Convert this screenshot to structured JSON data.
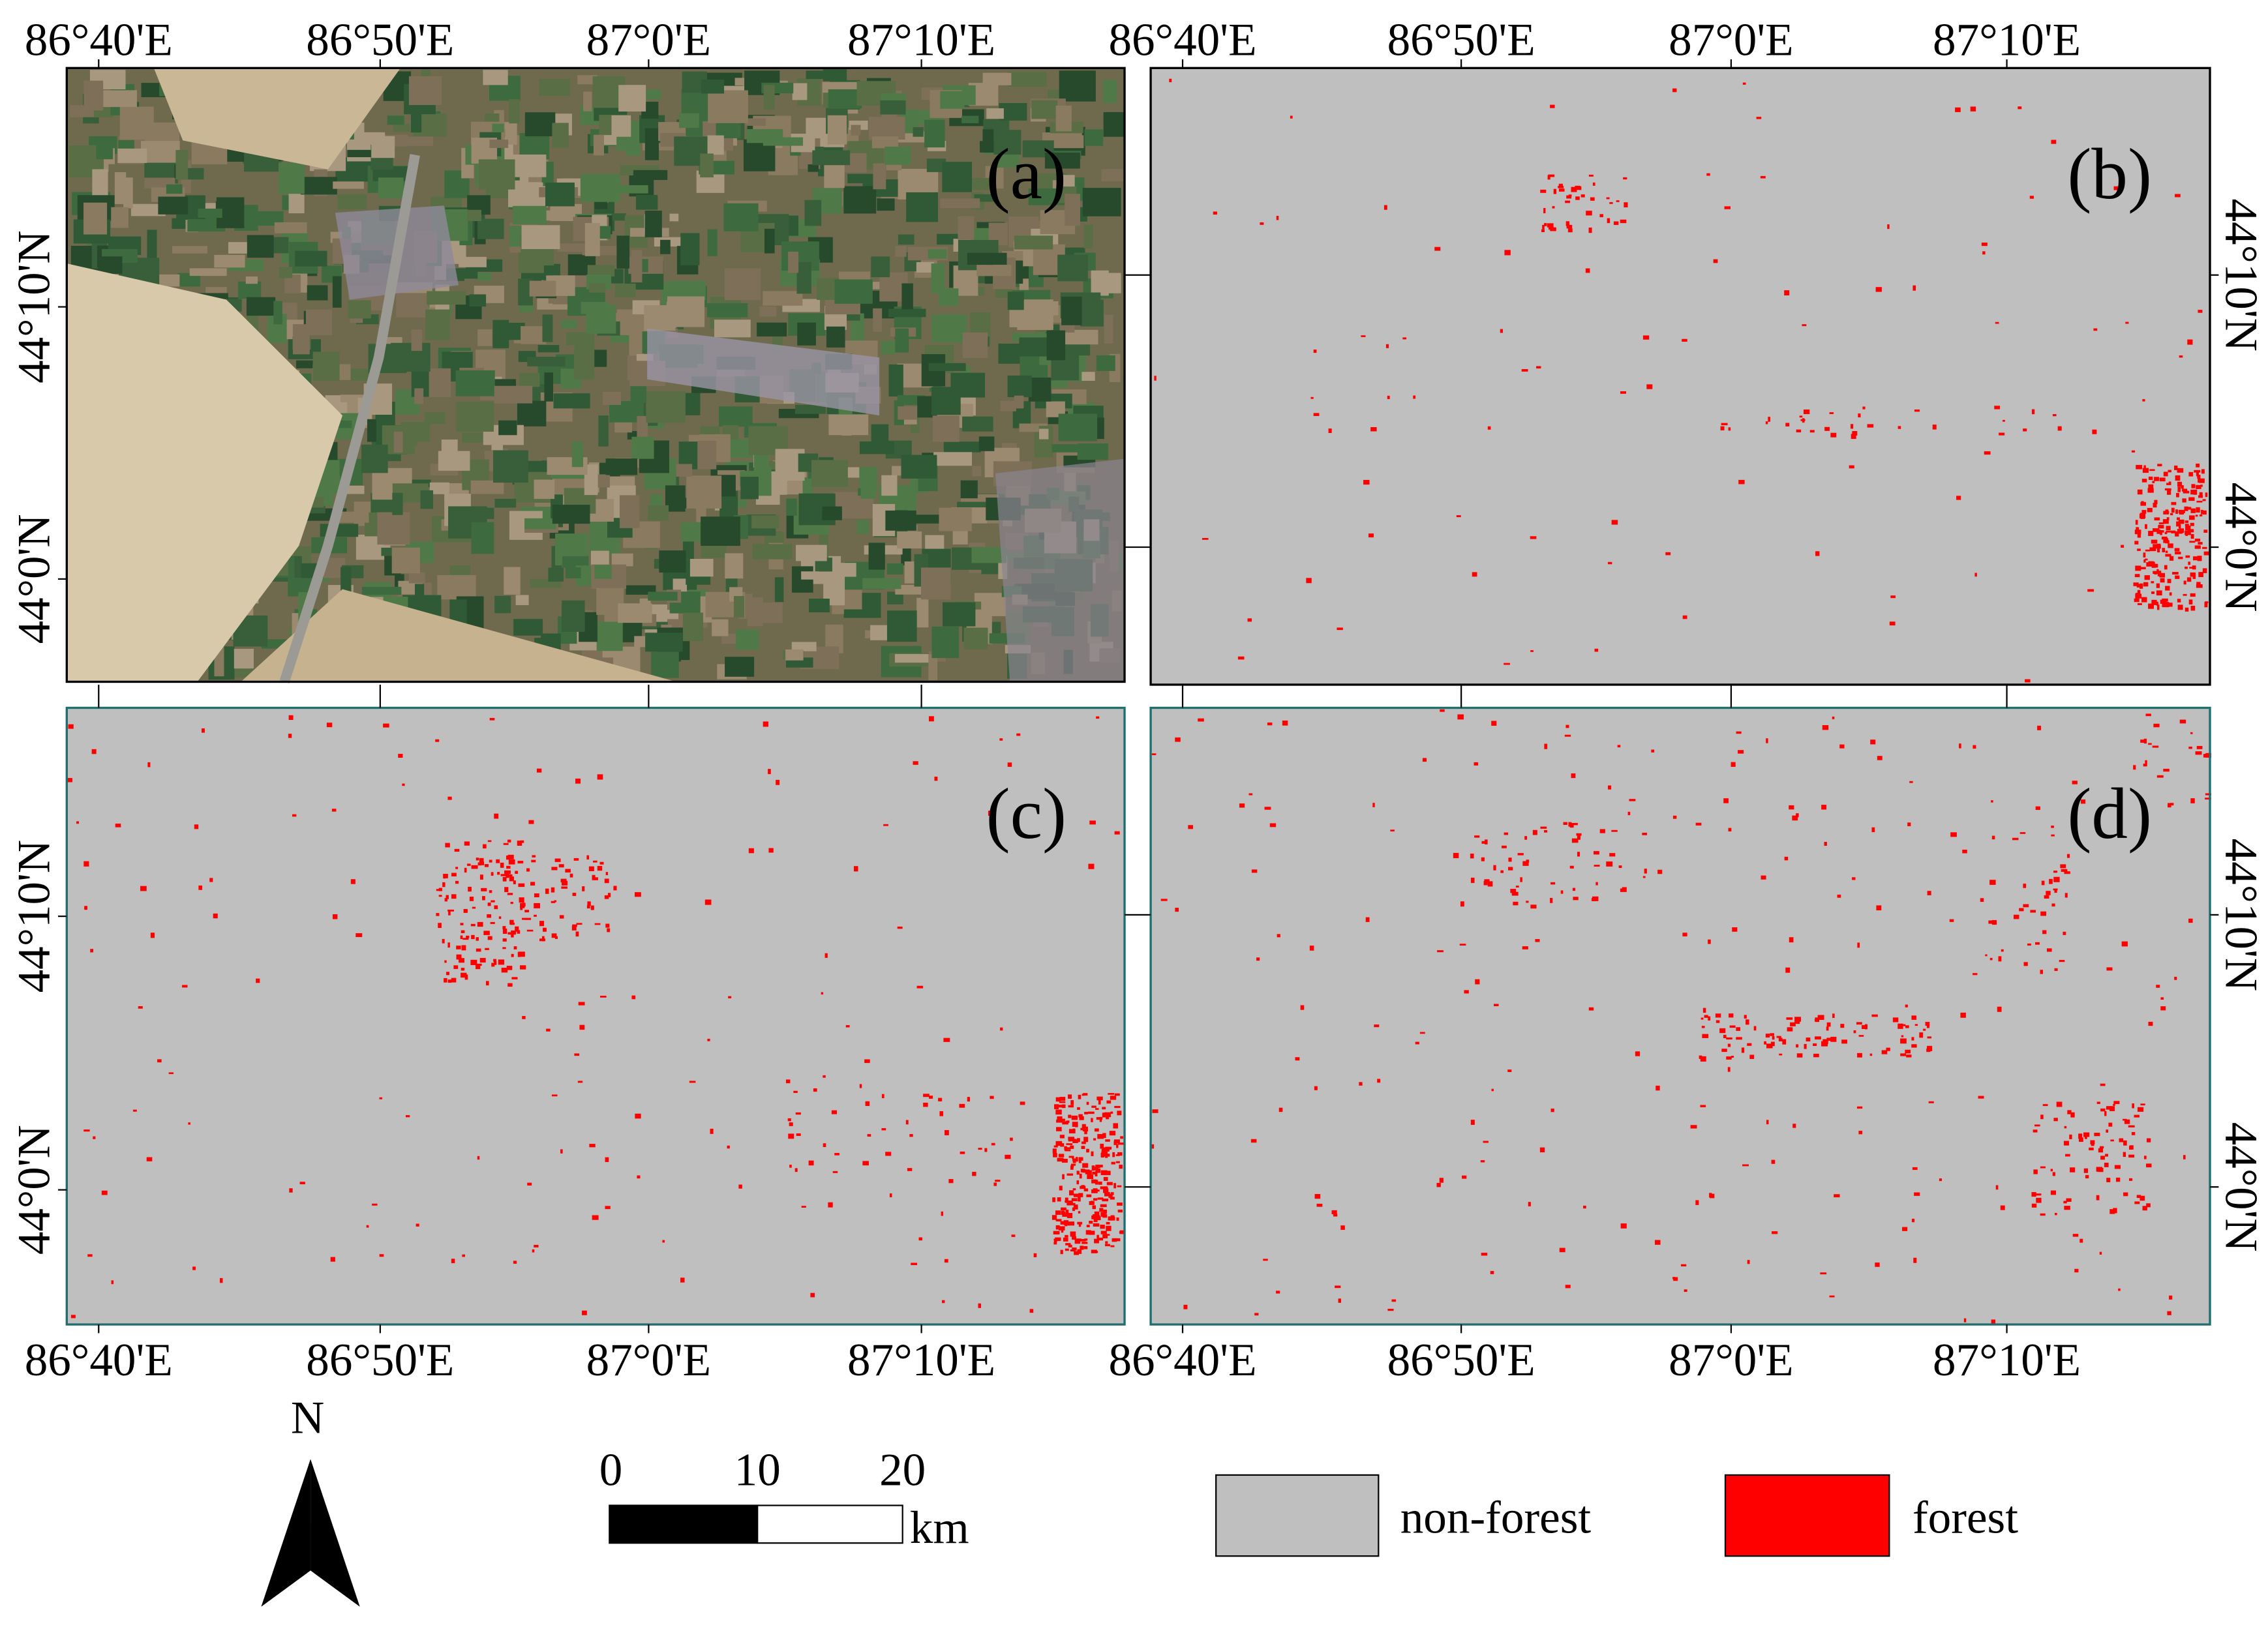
{
  "panels": [
    {
      "label": "(a)"
    },
    {
      "label": "(b)"
    },
    {
      "label": "(c)"
    },
    {
      "label": "(d)"
    }
  ],
  "longitude_labels": [
    "86°40'E",
    "86°50'E",
    "87°0'E",
    "87°10'E"
  ],
  "latitude_labels": [
    "44°10'N",
    "44°0'N"
  ],
  "north_arrow": "N",
  "scale_bar": {
    "ticks": [
      0,
      10,
      20
    ],
    "unit": "km"
  },
  "legend": [
    {
      "label": "non-forest",
      "color": "#bfbfbf"
    },
    {
      "label": "forest",
      "color": "#ff0000"
    }
  ]
}
